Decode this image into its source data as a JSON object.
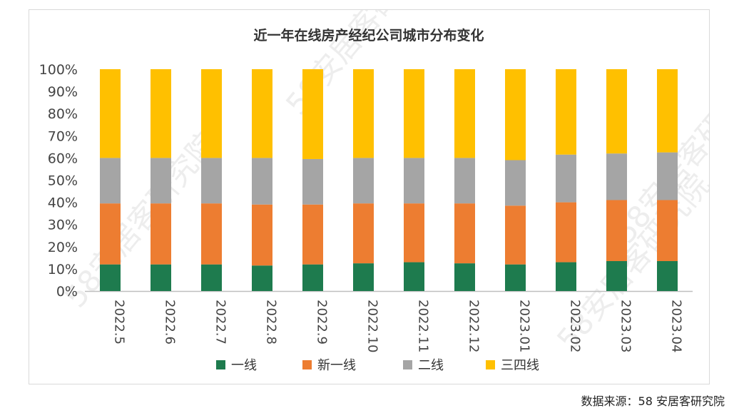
{
  "chart_data": {
    "type": "bar",
    "stacked": true,
    "title": "近一年在线房产经纪公司城市分布变化",
    "categories": [
      "2022.5",
      "2022.6",
      "2022.7",
      "2022.8",
      "2022.9",
      "2022.10",
      "2022.11",
      "2022.12",
      "2023.01",
      "2023.02",
      "2023.03",
      "2023.04"
    ],
    "series": [
      {
        "name": "一线",
        "color": "#1e7b4e",
        "values": [
          12,
          12,
          12,
          11.5,
          12,
          12.5,
          13,
          12.5,
          12,
          13,
          13.5,
          13.5
        ]
      },
      {
        "name": "新一线",
        "color": "#ed7d31",
        "values": [
          27.5,
          27.5,
          27.5,
          27.5,
          27,
          27,
          26.5,
          27,
          26.5,
          27,
          27.5,
          27.5
        ]
      },
      {
        "name": "二线",
        "color": "#a5a5a5",
        "values": [
          20.5,
          20.5,
          20.5,
          21,
          20.5,
          20.5,
          20.5,
          20.5,
          20.5,
          21.5,
          21,
          21.5
        ]
      },
      {
        "name": "三四线",
        "color": "#ffc000",
        "values": [
          40,
          40,
          40,
          40,
          40.5,
          40,
          40,
          40,
          41,
          38.5,
          38,
          37.5
        ]
      }
    ],
    "yticks": [
      "0%",
      "10%",
      "20%",
      "30%",
      "40%",
      "50%",
      "60%",
      "70%",
      "80%",
      "90%",
      "100%"
    ],
    "ylim": [
      0,
      100
    ],
    "legend_position": "bottom"
  },
  "source": "数据来源：58 安居客研究院",
  "watermark": "58安居客研究院"
}
